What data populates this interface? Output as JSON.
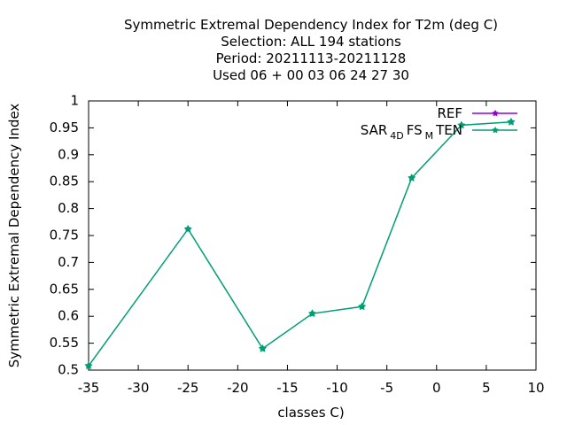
{
  "chart_data": {
    "type": "line",
    "title_lines": [
      "Symmetric Extremal Dependency Index  for T2m (deg C)",
      "Selection: ALL    194 stations",
      "Period: 20211113-20211128",
      "Used  06 + 00 03 06 24 27 30"
    ],
    "xlabel": "classes C)",
    "ylabel": "Symmetric Extremal Dependency Index",
    "xlim": [
      -35,
      10
    ],
    "ylim": [
      0.5,
      1
    ],
    "xticks": [
      "-35",
      "-30",
      "-25",
      "-20",
      "-15",
      "-10",
      "-5",
      "0",
      "5",
      "10"
    ],
    "yticks": [
      "0.5",
      "0.55",
      "0.6",
      "0.65",
      "0.7",
      "0.75",
      "0.8",
      "0.85",
      "0.9",
      "0.95",
      "1"
    ],
    "grid": false,
    "legend_position": "top-right",
    "series": [
      {
        "name": "REF",
        "color": "#9400d3",
        "x": [],
        "y": []
      },
      {
        "name": "SAR_4D FS_M TEN",
        "label_parts": [
          "SAR",
          "4D",
          "FS",
          "M",
          "TEN"
        ],
        "color": "#009e73",
        "x": [
          -35,
          -25,
          -17.5,
          -12.5,
          -7.5,
          -2.5,
          2.5,
          7.5
        ],
        "y": [
          0.508,
          0.762,
          0.54,
          0.605,
          0.618,
          0.857,
          0.955,
          0.961
        ]
      }
    ]
  }
}
